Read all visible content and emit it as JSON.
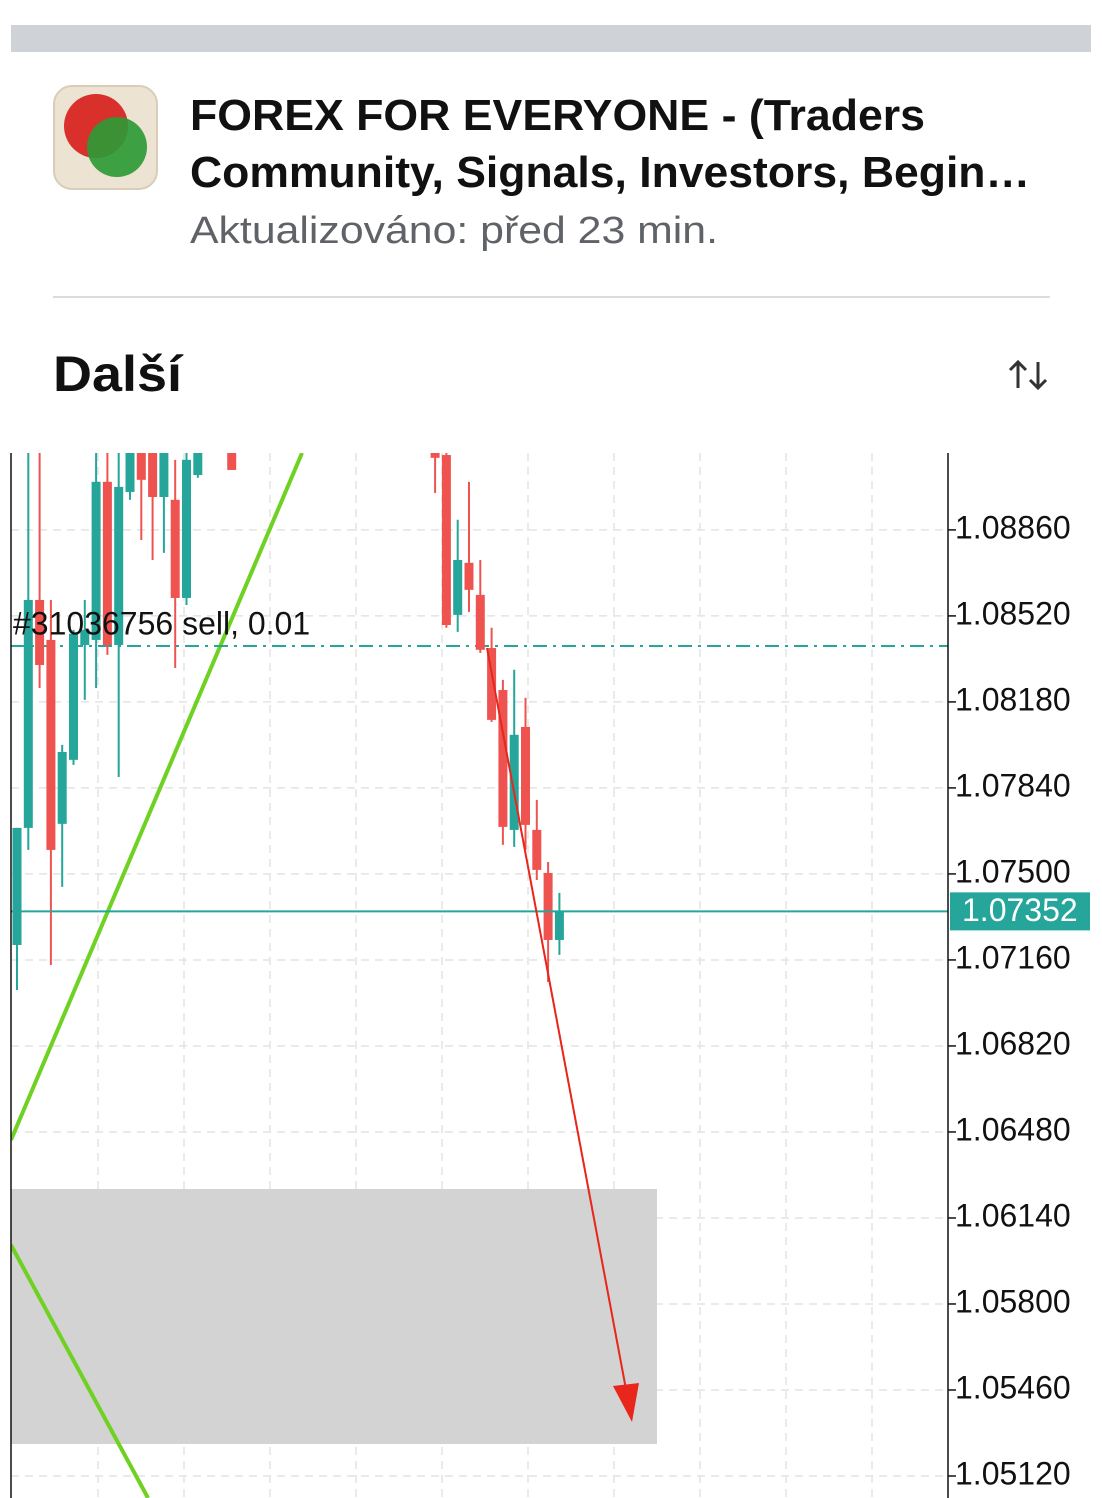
{
  "header": {
    "title_lines": [
      "FOREX FOR EVERYONE - (Traders",
      "Community, Signals, Investors, Begin…"
    ],
    "subtitle": "Aktualizováno: před 23 min.",
    "section": "Další"
  },
  "chart_data": {
    "type": "candlestick",
    "open": [
      1.07219,
      1.07682,
      1.08583,
      1.08425,
      1.07698,
      1.07951,
      1.08405,
      1.08425,
      1.0905,
      1.08405,
      1.0901,
      1.09164,
      1.09164,
      1.0899,
      1.08979,
      1.08591,
      1.09077,
      null,
      null,
      1.09164,
      null,
      null,
      null,
      null,
      null,
      null,
      null,
      null,
      null,
      null,
      null,
      null,
      null,
      null,
      null,
      null,
      null,
      1.09164,
      1.09156,
      1.08524,
      1.0873,
      1.08603,
      1.08393,
      1.08227,
      1.07674,
      1.08081,
      1.07674,
      1.07504,
      1.07239
    ],
    "high": [
      1.07682,
      1.09164,
      1.09164,
      1.08583,
      1.0801,
      1.08465,
      1.08583,
      1.09164,
      1.09164,
      1.09164,
      1.09164,
      1.09164,
      1.09164,
      1.09164,
      1.09137,
      1.09164,
      1.09164,
      null,
      null,
      1.09164,
      null,
      null,
      null,
      null,
      null,
      null,
      null,
      null,
      null,
      null,
      null,
      null,
      null,
      null,
      null,
      null,
      null,
      1.09164,
      1.09164,
      1.089,
      1.0905,
      1.08741,
      1.08473,
      1.08267,
      1.08307,
      1.08196,
      1.07793,
      1.07547,
      1.07425
    ],
    "low": [
      1.07041,
      1.07595,
      1.08235,
      1.0714,
      1.07449,
      1.07931,
      1.08188,
      1.08235,
      1.08366,
      1.07883,
      1.08979,
      1.0882,
      1.08741,
      1.08769,
      1.08314,
      1.08563,
      1.09066,
      null,
      null,
      1.09097,
      null,
      null,
      null,
      null,
      null,
      null,
      null,
      null,
      null,
      null,
      null,
      null,
      null,
      null,
      null,
      null,
      null,
      1.09006,
      1.08473,
      1.08457,
      1.08536,
      1.08374,
      1.08101,
      1.07615,
      1.07607,
      1.07595,
      1.07476,
      1.07073,
      1.0718
    ],
    "close": [
      1.07682,
      1.08583,
      1.08326,
      1.07595,
      1.07982,
      1.08449,
      1.08465,
      1.0905,
      1.08405,
      1.0903,
      1.09164,
      1.09058,
      1.0899,
      1.09164,
      1.08591,
      1.09137,
      1.09164,
      null,
      null,
      1.09097,
      null,
      null,
      null,
      null,
      null,
      null,
      null,
      null,
      null,
      null,
      null,
      null,
      null,
      null,
      null,
      null,
      null,
      1.09145,
      1.08484,
      1.08741,
      1.08623,
      1.08386,
      1.08109,
      1.07686,
      1.0805,
      1.07694,
      1.07516,
      1.07239,
      1.07352
    ],
    "up_color": "#26a69a",
    "down_color": "#ef5350",
    "ylim": [
      1.05033,
      1.09164
    ],
    "yticks": [
      {
        "value": 1.0886,
        "label": "1.08860"
      },
      {
        "value": 1.0852,
        "label": "1.08520"
      },
      {
        "value": 1.0818,
        "label": "1.08180"
      },
      {
        "value": 1.0784,
        "label": "1.07840"
      },
      {
        "value": 1.075,
        "label": "1.07500"
      },
      {
        "value": 1.0716,
        "label": "1.07160"
      },
      {
        "value": 1.0682,
        "label": "1.06820"
      },
      {
        "value": 1.0648,
        "label": "1.06480"
      },
      {
        "value": 1.0614,
        "label": "1.06140"
      },
      {
        "value": 1.058,
        "label": "1.05800"
      },
      {
        "value": 1.0546,
        "label": "1.05460"
      },
      {
        "value": 1.0512,
        "label": "1.05120"
      }
    ],
    "grid": true,
    "current_price": 1.07352,
    "order_label": "#31036756 sell, 0.01",
    "order_price": 1.08401
  }
}
